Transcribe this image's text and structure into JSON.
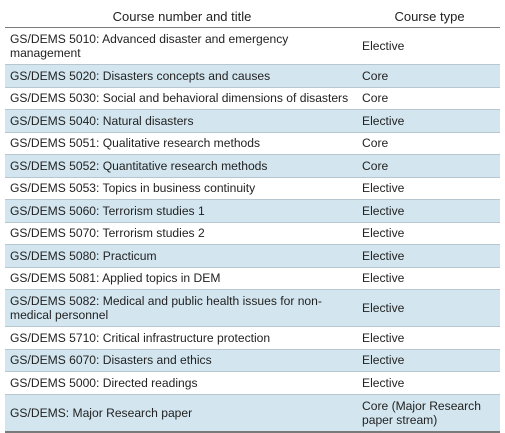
{
  "table": {
    "headers": [
      "Course number and title",
      "Course type"
    ],
    "rows": [
      {
        "title": "GS/DEMS 5010: Advanced disaster and emergency management",
        "type": "Elective",
        "shaded": false
      },
      {
        "title": "GS/DEMS 5020: Disasters concepts and causes",
        "type": "Core",
        "shaded": true
      },
      {
        "title": "GS/DEMS 5030: Social and behavioral dimensions of disasters",
        "type": "Core",
        "shaded": false
      },
      {
        "title": "GS/DEMS 5040: Natural disasters",
        "type": "Elective",
        "shaded": true
      },
      {
        "title": "GS/DEMS 5051: Qualitative research methods",
        "type": "Core",
        "shaded": false
      },
      {
        "title": "GS/DEMS 5052: Quantitative research methods",
        "type": "Core",
        "shaded": true
      },
      {
        "title": "GS/DEMS 5053: Topics in business continuity",
        "type": "Elective",
        "shaded": false
      },
      {
        "title": "GS/DEMS 5060: Terrorism studies 1",
        "type": "Elective",
        "shaded": true
      },
      {
        "title": "GS/DEMS 5070: Terrorism studies 2",
        "type": "Elective",
        "shaded": false
      },
      {
        "title": "GS/DEMS 5080: Practicum",
        "type": "Elective",
        "shaded": true
      },
      {
        "title": "GS/DEMS 5081: Applied topics in DEM",
        "type": "Elective",
        "shaded": false
      },
      {
        "title": "GS/DEMS 5082: Medical and public health issues for non-medical personnel",
        "type": "Elective",
        "shaded": true
      },
      {
        "title": "GS/DEMS 5710: Critical infrastructure protection",
        "type": "Elective",
        "shaded": false
      },
      {
        "title": "GS/DEMS 6070: Disasters and ethics",
        "type": "Elective",
        "shaded": true
      },
      {
        "title": "GS/DEMS 5000: Directed readings",
        "type": "Elective",
        "shaded": false
      },
      {
        "title": "GS/DEMS: Major Research paper",
        "type": "Core (Major Research paper stream)",
        "shaded": true
      }
    ]
  },
  "colors": {
    "row_shade": "#d3e6ef",
    "rule": "#7a7a7a"
  }
}
